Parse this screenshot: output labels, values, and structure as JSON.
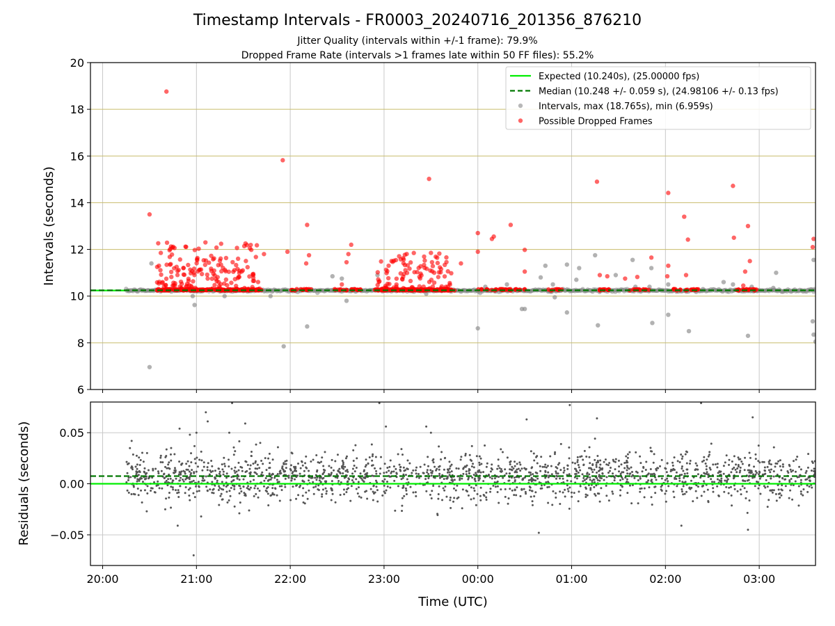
{
  "header": {
    "title": "Timestamp Intervals - FR0003_20240716_201356_876210",
    "subtitle_jitter": "Jitter Quality (intervals within +/-1 frame): 79.9%",
    "subtitle_dropped": "Dropped Frame Rate (intervals >1 frames late within 50 FF files): 55.2%"
  },
  "colors": {
    "expected": "#00ee00",
    "median": "#007700",
    "interval_points": "#888888",
    "dropped_points": "#ff0000",
    "residual_points": "#555555",
    "hgrid_top": "#c8bc6a",
    "grid": "#c8c8c8"
  },
  "chart_data": [
    {
      "type": "scatter",
      "panel": "intervals",
      "xlabel": "",
      "ylabel": "Intervals (seconds)",
      "ylim": [
        6,
        20
      ],
      "y_ticks": [
        "6",
        "8",
        "10",
        "12",
        "14",
        "16",
        "18",
        "20"
      ],
      "xlim_hours": [
        19.87,
        27.6
      ],
      "grid": true,
      "legend_position": "top-right",
      "expected_value": 10.24,
      "median_value": 10.248,
      "legend": [
        {
          "label": "Expected (10.240s), (25.00000 fps)",
          "style": "solid-line"
        },
        {
          "label": "Median (10.248 +/- 0.059 s), (24.98106 +/- 0.13 fps)",
          "style": "dashed-line"
        },
        {
          "label": "Intervals, max (18.765s), min (6.959s)",
          "style": "gray-dot"
        },
        {
          "label": "Possible Dropped Frames",
          "style": "red-dot"
        }
      ],
      "series": [
        {
          "name": "Intervals, max (18.765s), min (6.959s)",
          "baseline_range_hours": [
            20.25,
            27.6
          ],
          "baseline_value": 10.24,
          "outliers": [
            [
              20.5,
              6.96
            ],
            [
              20.52,
              11.4
            ],
            [
              20.98,
              9.62
            ],
            [
              20.96,
              10.0
            ],
            [
              21.3,
              10.0
            ],
            [
              21.79,
              10.0
            ],
            [
              21.93,
              7.85
            ],
            [
              22.18,
              8.7
            ],
            [
              22.45,
              10.85
            ],
            [
              22.55,
              10.75
            ],
            [
              22.6,
              9.8
            ],
            [
              22.93,
              10.9
            ],
            [
              23.45,
              10.1
            ],
            [
              24.0,
              8.62
            ],
            [
              24.08,
              10.4
            ],
            [
              24.31,
              10.5
            ],
            [
              24.47,
              9.45
            ],
            [
              24.5,
              9.45
            ],
            [
              24.67,
              10.8
            ],
            [
              24.72,
              11.3
            ],
            [
              24.82,
              9.95
            ],
            [
              24.8,
              10.5
            ],
            [
              24.95,
              9.3
            ],
            [
              24.95,
              11.35
            ],
            [
              25.08,
              11.2
            ],
            [
              25.05,
              10.7
            ],
            [
              25.25,
              11.75
            ],
            [
              25.28,
              8.75
            ],
            [
              25.47,
              10.9
            ],
            [
              25.65,
              11.55
            ],
            [
              25.68,
              10.4
            ],
            [
              25.85,
              11.2
            ],
            [
              25.86,
              8.85
            ],
            [
              25.83,
              10.4
            ],
            [
              26.03,
              9.2
            ],
            [
              26.03,
              10.5
            ],
            [
              26.25,
              8.5
            ],
            [
              26.4,
              10.3
            ],
            [
              26.62,
              10.6
            ],
            [
              26.72,
              10.5
            ],
            [
              26.88,
              8.3
            ],
            [
              26.92,
              10.4
            ],
            [
              27.18,
              11.0
            ],
            [
              27.15,
              10.35
            ],
            [
              27.58,
              11.55
            ],
            [
              27.57,
              8.92
            ],
            [
              27.58,
              8.35
            ],
            [
              27.6,
              8.05
            ]
          ]
        },
        {
          "name": "Possible Dropped Frames",
          "low_points": [
            [
              20.7,
              10.24
            ],
            [
              21.42,
              10.24
            ],
            [
              22.05,
              10.24
            ],
            [
              22.6,
              10.24
            ],
            [
              23.38,
              10.24
            ],
            [
              23.75,
              10.24
            ],
            [
              24.18,
              10.24
            ],
            [
              24.35,
              10.24
            ],
            [
              24.78,
              10.24
            ],
            [
              25.3,
              10.24
            ],
            [
              25.62,
              10.24
            ],
            [
              26.12,
              10.24
            ],
            [
              26.22,
              10.24
            ],
            [
              26.78,
              10.24
            ],
            [
              26.95,
              10.24
            ]
          ],
          "clusters": [
            {
              "x_range": [
                20.58,
                21.68
              ],
              "y_range": [
                10.24,
                12.3
              ],
              "count": 320
            },
            {
              "x_range": [
                22.93,
                23.72
              ],
              "y_range": [
                10.24,
                12.0
              ],
              "count": 220
            }
          ],
          "points": [
            [
              20.5,
              13.5
            ],
            [
              20.68,
              18.76
            ],
            [
              20.62,
              11.85
            ],
            [
              20.6,
              11.3
            ],
            [
              21.92,
              15.82
            ],
            [
              21.72,
              11.8
            ],
            [
              21.97,
              11.9
            ],
            [
              22.17,
              11.4
            ],
            [
              22.2,
              11.75
            ],
            [
              22.18,
              13.05
            ],
            [
              22.6,
              11.45
            ],
            [
              22.65,
              12.2
            ],
            [
              22.62,
              11.8
            ],
            [
              22.55,
              10.5
            ],
            [
              23.08,
              11.5
            ],
            [
              23.48,
              15.02
            ],
            [
              23.5,
              11.85
            ],
            [
              23.82,
              11.4
            ],
            [
              24.0,
              12.7
            ],
            [
              24.0,
              11.9
            ],
            [
              24.15,
              12.45
            ],
            [
              24.17,
              12.55
            ],
            [
              24.35,
              13.05
            ],
            [
              24.5,
              11.98
            ],
            [
              24.5,
              11.05
            ],
            [
              25.27,
              14.9
            ],
            [
              25.3,
              10.9
            ],
            [
              25.38,
              10.85
            ],
            [
              25.57,
              10.75
            ],
            [
              25.7,
              10.82
            ],
            [
              25.85,
              11.65
            ],
            [
              26.03,
              14.42
            ],
            [
              26.03,
              11.3
            ],
            [
              26.02,
              10.85
            ],
            [
              26.2,
              13.4
            ],
            [
              26.24,
              12.42
            ],
            [
              26.22,
              10.9
            ],
            [
              26.72,
              14.72
            ],
            [
              26.73,
              12.5
            ],
            [
              26.85,
              11.05
            ],
            [
              26.88,
              13.0
            ],
            [
              26.9,
              11.5
            ],
            [
              26.83,
              10.45
            ],
            [
              27.58,
              12.45
            ],
            [
              27.57,
              12.1
            ]
          ]
        }
      ]
    },
    {
      "type": "scatter",
      "panel": "residuals",
      "xlabel": "Time (UTC)",
      "ylabel": "Residuals (seconds)",
      "ylim": [
        -0.08,
        0.08
      ],
      "y_ticks": [
        "−0.05",
        "0.00",
        "0.05"
      ],
      "xlim_hours": [
        19.87,
        27.6
      ],
      "x_ticks": [
        "20:00",
        "21:00",
        "22:00",
        "23:00",
        "00:00",
        "01:00",
        "02:00",
        "03:00"
      ],
      "grid": true,
      "expected_value": 0.0,
      "median_value": 0.0075,
      "series": [
        {
          "name": "",
          "x_range_hours": [
            20.25,
            27.6
          ],
          "center": 0.007,
          "spread": 0.012,
          "count": 1900,
          "outliers": [
            [
              20.47,
              -0.027
            ],
            [
              20.67,
              0.026
            ],
            [
              20.73,
              0.035
            ],
            [
              20.8,
              -0.041
            ],
            [
              20.82,
              0.054
            ],
            [
              20.93,
              0.048
            ],
            [
              20.97,
              -0.07
            ],
            [
              21.0,
              0.05
            ],
            [
              21.05,
              -0.032
            ],
            [
              21.1,
              0.07
            ],
            [
              21.12,
              0.061
            ],
            [
              21.35,
              0.05
            ],
            [
              21.38,
              0.079
            ],
            [
              21.52,
              0.059
            ],
            [
              21.68,
              0.04
            ],
            [
              22.95,
              0.079
            ],
            [
              23.02,
              0.056
            ],
            [
              23.45,
              0.056
            ],
            [
              23.5,
              0.05
            ],
            [
              24.52,
              0.063
            ],
            [
              24.65,
              -0.048
            ],
            [
              24.98,
              0.077
            ],
            [
              25.27,
              0.064
            ],
            [
              26.17,
              -0.041
            ],
            [
              26.38,
              0.079
            ],
            [
              26.88,
              -0.045
            ],
            [
              26.93,
              0.065
            ]
          ]
        }
      ]
    }
  ]
}
